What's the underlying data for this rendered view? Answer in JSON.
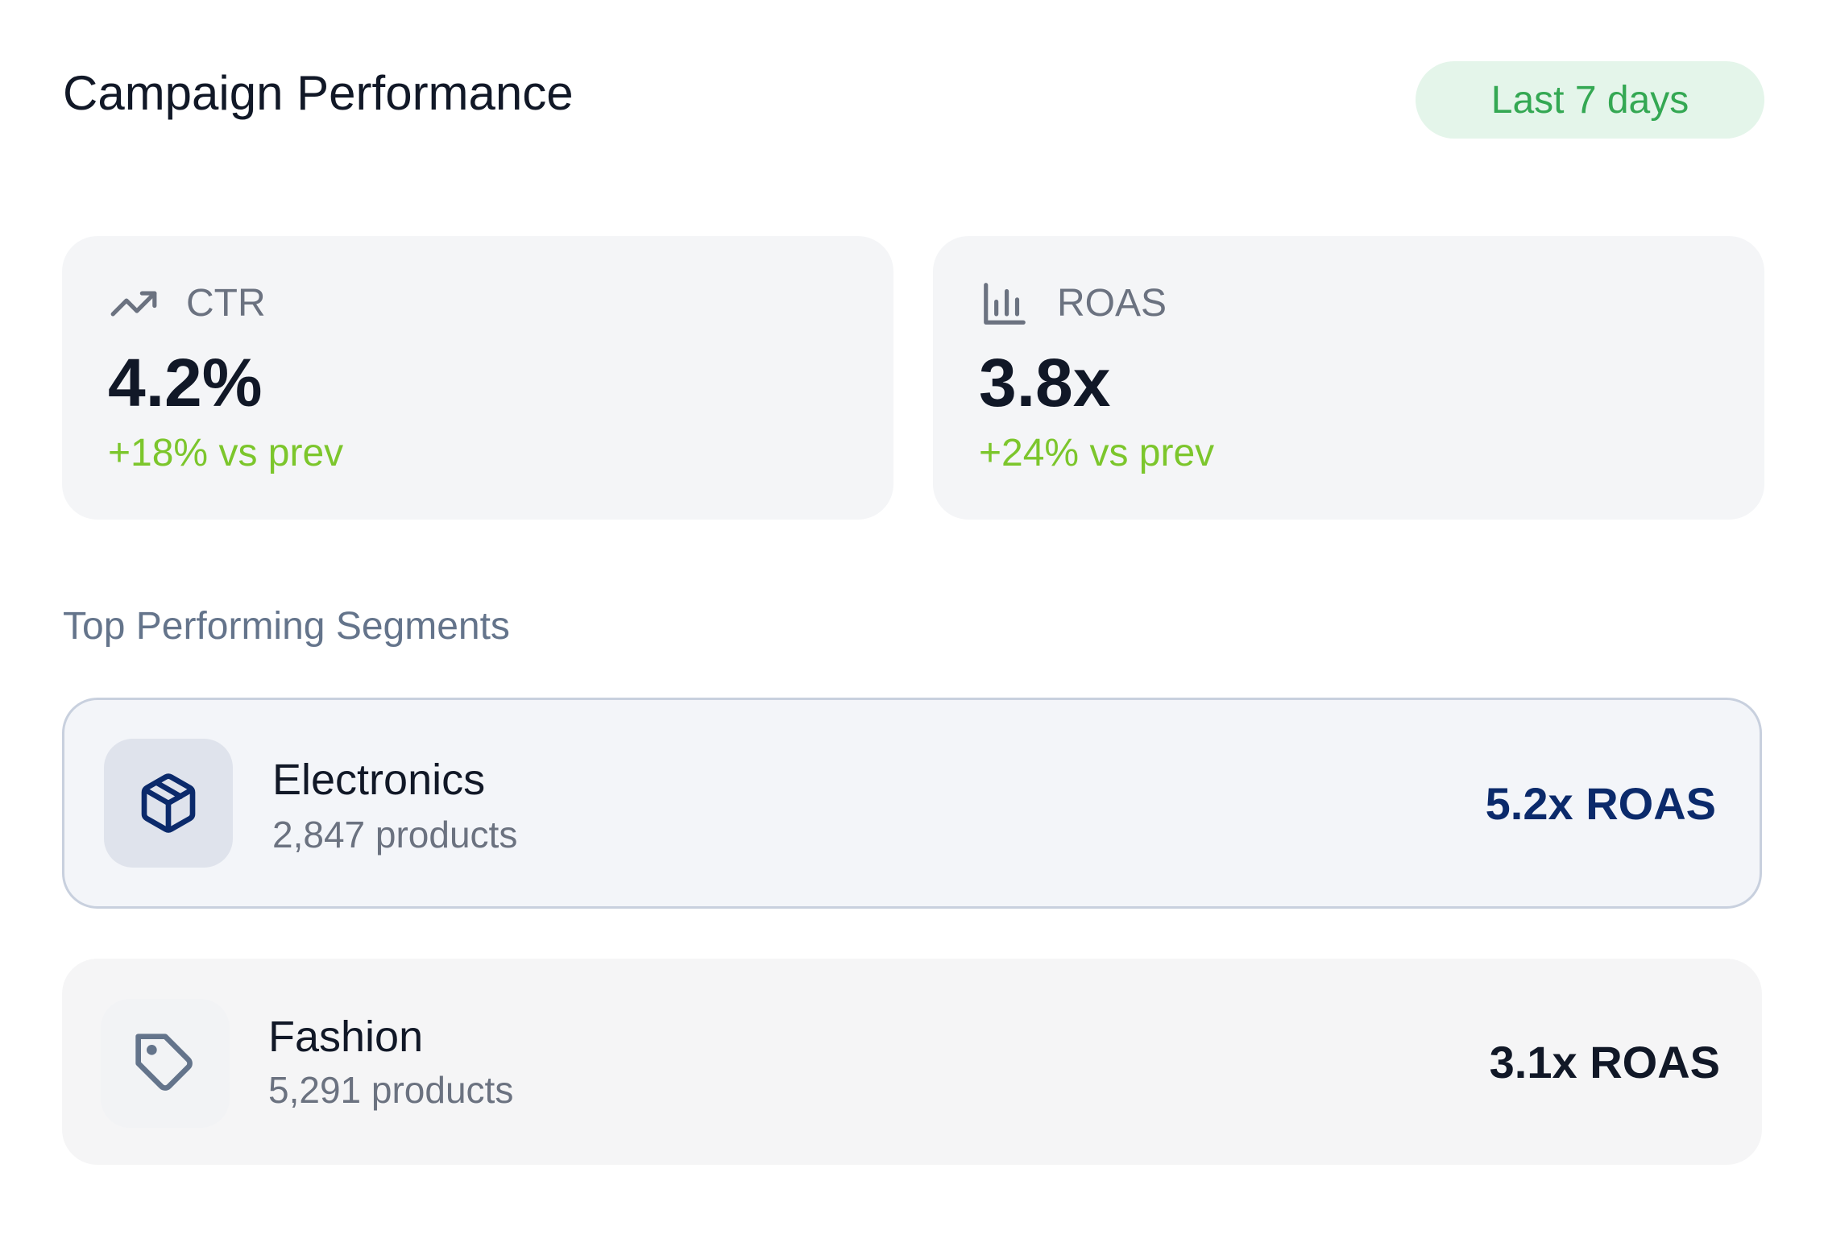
{
  "header": {
    "title": "Campaign Performance",
    "range_label": "Last 7 days"
  },
  "metrics": [
    {
      "icon": "trending-up-icon",
      "label": "CTR",
      "value": "4.2%",
      "delta": "+18% vs prev"
    },
    {
      "icon": "bar-chart-icon",
      "label": "ROAS",
      "value": "3.8x",
      "delta": "+24% vs prev"
    }
  ],
  "segments_title": "Top Performing Segments",
  "segments": [
    {
      "icon": "package-icon",
      "name": "Electronics",
      "count": "2,847 products",
      "metric": "5.2x ROAS"
    },
    {
      "icon": "tag-icon",
      "name": "Fashion",
      "count": "5,291 products",
      "metric": "3.1x ROAS"
    }
  ],
  "colors": {
    "accent_green": "#34a853",
    "delta_green": "#7cc62c",
    "highlight_navy": "#0b2a6b",
    "muted_text": "#6b7280"
  }
}
